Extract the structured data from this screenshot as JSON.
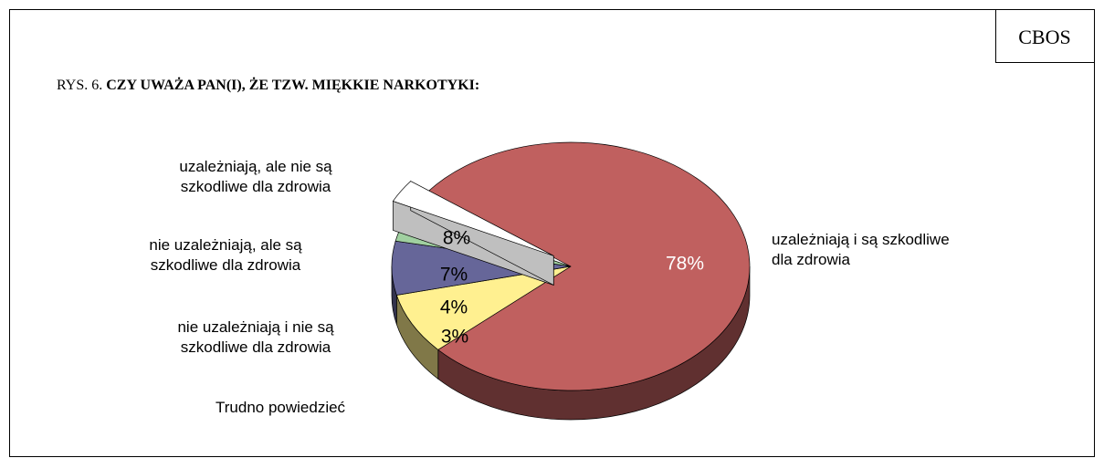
{
  "chart_data": {
    "type": "pie",
    "brand": "CBOS",
    "figure_label": "RYS. 6.",
    "title": "CZY UWAŻA PAN(I), ŻE TZW. MIĘKKIE NARKOTYKI:",
    "categories": [
      "uzależniają i są szkodliwe dla zdrowia",
      "uzależniają, ale nie są szkodliwe dla zdrowia",
      "nie uzależniają, ale są szkodliwe dla zdrowia",
      "nie uzależniają i nie są szkodliwe dla zdrowia",
      "Trudno powiedzieć"
    ],
    "values": [
      78,
      8,
      7,
      4,
      3
    ],
    "value_labels": [
      "78%",
      "8%",
      "7%",
      "4%",
      "3%"
    ],
    "colors": [
      "#c0605f",
      "#fff090",
      "#666699",
      "#a0d0a0",
      "#ffffff"
    ]
  }
}
